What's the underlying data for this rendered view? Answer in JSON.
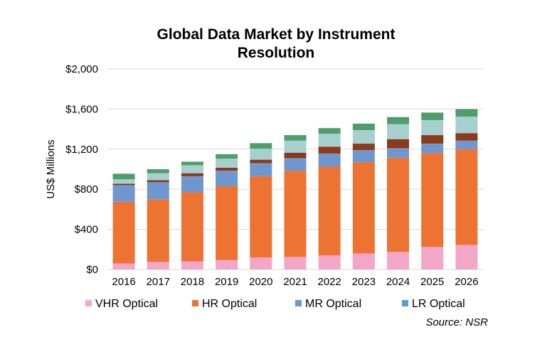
{
  "chart_data": {
    "type": "bar",
    "stacked": true,
    "title_lines": [
      "Global  Data Market by Instrument",
      "Resolution"
    ],
    "ylabel": "US$ Millions",
    "xlabel": "",
    "ylim": [
      0,
      2000
    ],
    "y_ticks": [
      0,
      400,
      800,
      1200,
      1600,
      2000
    ],
    "y_tick_labels": [
      "$0",
      "$400",
      "$800",
      "$1,200",
      "$1,600",
      "$2,000"
    ],
    "grid": true,
    "legend_position": "bottom",
    "categories": [
      "2016",
      "2017",
      "2018",
      "2019",
      "2020",
      "2021",
      "2022",
      "2023",
      "2024",
      "2025",
      "2026"
    ],
    "series": [
      {
        "name": "VHR Optical",
        "color": "#f4a6c9",
        "values": [
          60,
          75,
          80,
          95,
          120,
          125,
          140,
          160,
          175,
          225,
          245
        ]
      },
      {
        "name": "HR Optical",
        "color": "#ed7333",
        "values": [
          615,
          625,
          690,
          735,
          810,
          860,
          885,
          910,
          940,
          935,
          955
        ]
      },
      {
        "name": "MR Optical",
        "color": "#6f96cf",
        "values": [
          160,
          165,
          155,
          150,
          125,
          120,
          125,
          115,
          90,
          90,
          80
        ]
      },
      {
        "name": "LR Optical",
        "color": "#5b9bd5",
        "values": [
          5,
          5,
          5,
          5,
          5,
          5,
          5,
          5,
          5,
          5,
          5
        ]
      },
      {
        "name": "",
        "color": "#8b3a1a",
        "values": [
          15,
          20,
          30,
          30,
          35,
          55,
          70,
          65,
          90,
          85,
          75
        ]
      },
      {
        "name": "",
        "color": "#a6d0d0",
        "values": [
          45,
          70,
          80,
          90,
          110,
          120,
          130,
          135,
          150,
          150,
          165
        ]
      },
      {
        "name": "",
        "color": "#4f9d69",
        "values": [
          55,
          40,
          35,
          45,
          55,
          55,
          55,
          65,
          70,
          75,
          75
        ]
      }
    ],
    "source": "Source: NSR"
  }
}
